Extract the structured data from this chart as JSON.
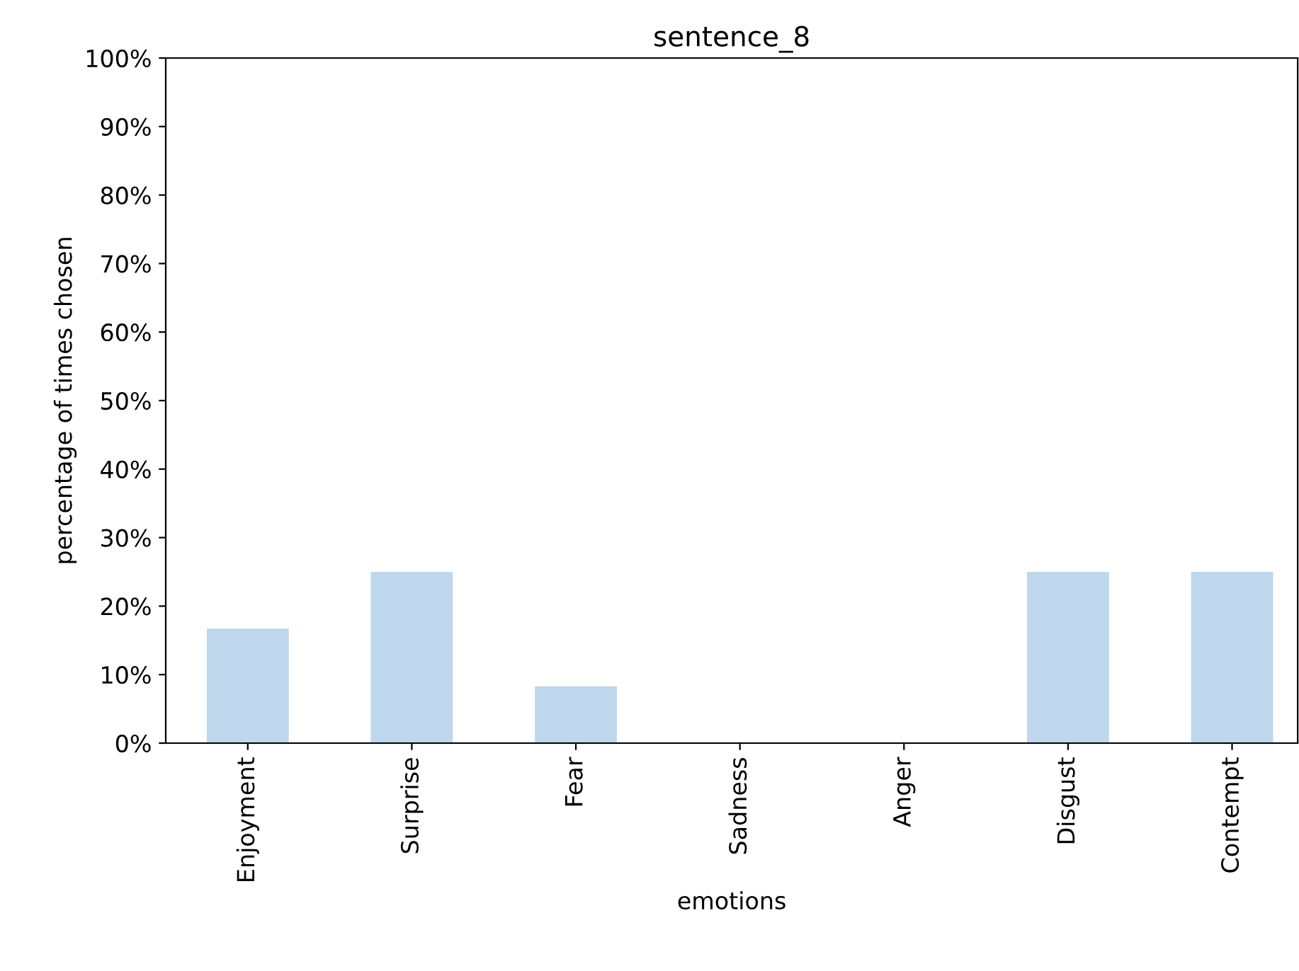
{
  "chart_data": {
    "type": "bar",
    "title": "sentence_8",
    "xlabel": "emotions",
    "ylabel": "percentage of times chosen",
    "categories": [
      "Enjoyment",
      "Surprise",
      "Fear",
      "Sadness",
      "Anger",
      "Disgust",
      "Contempt"
    ],
    "values": [
      16.7,
      25,
      8.3,
      0,
      0,
      25,
      25
    ],
    "color": "#bed7ec",
    "ylim": [
      0,
      100
    ],
    "yticks": [
      {
        "value": 0,
        "label": "0%"
      },
      {
        "value": 10,
        "label": "10%"
      },
      {
        "value": 20,
        "label": "20%"
      },
      {
        "value": 30,
        "label": "30%"
      },
      {
        "value": 40,
        "label": "40%"
      },
      {
        "value": 50,
        "label": "50%"
      },
      {
        "value": 60,
        "label": "60%"
      },
      {
        "value": 70,
        "label": "70%"
      },
      {
        "value": 80,
        "label": "80%"
      },
      {
        "value": 90,
        "label": "90%"
      },
      {
        "value": 100,
        "label": "100%"
      }
    ],
    "grid": false
  }
}
